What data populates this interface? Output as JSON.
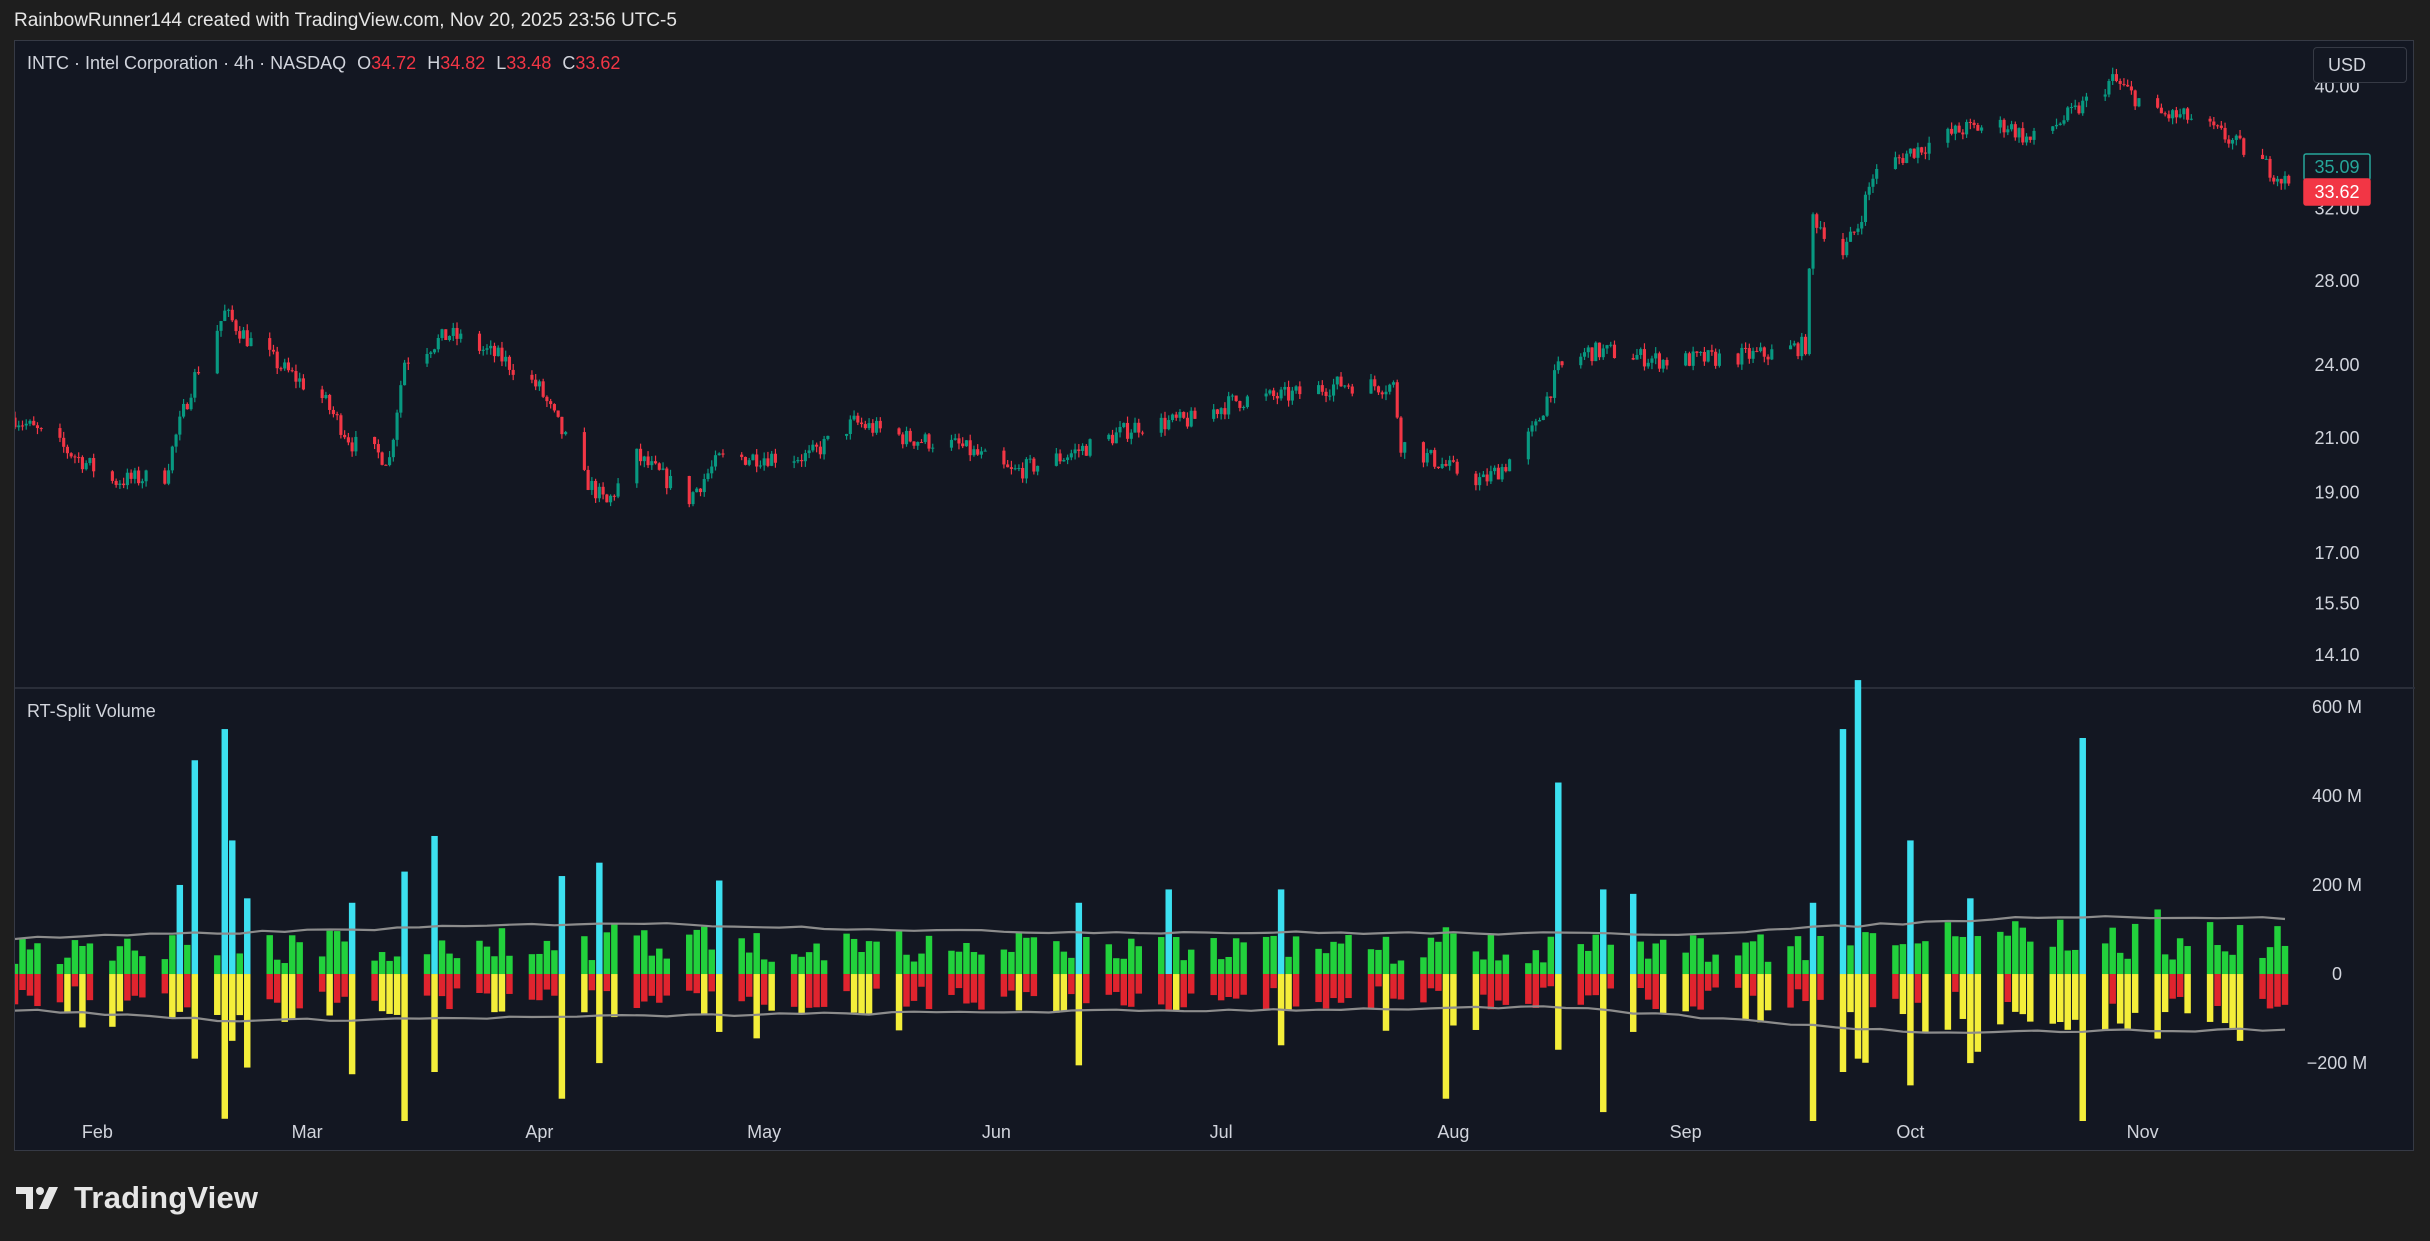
{
  "caption": "RainbowRunner144 created with TradingView.com, Nov 20, 2025 23:56 UTC-5",
  "legend": {
    "symbol": "INTC · Intel Corporation · 4h · NASDAQ",
    "o_label": "O",
    "o": "34.72",
    "h_label": "H",
    "h": "34.82",
    "l_label": "L",
    "l": "33.48",
    "c_label": "C",
    "c": "33.62"
  },
  "currency_button": "USD",
  "volume_pane_title": "RT-Split Volume",
  "brand": "TradingView",
  "colors": {
    "up": "#089981",
    "down": "#f23645",
    "vol_buy": "#22d13c",
    "vol_sell": "#e0242e",
    "vol_buy_spike": "#3ce0f0",
    "vol_sell_spike": "#f4ee3a",
    "avg_line": "#8c8c8c",
    "last_price_tag": "#f23645",
    "prev_close_tag": "#26a69a"
  },
  "chart_data": [
    {
      "type": "candlestick",
      "scale": "log",
      "y_ticks": [
        "40.00",
        "32.00",
        "28.00",
        "24.00",
        "21.00",
        "19.00",
        "17.00",
        "15.50",
        "14.10"
      ],
      "y_tick_values": [
        40,
        32,
        28,
        24,
        21,
        19,
        17,
        15.5,
        14.1
      ],
      "ylim": [
        13.3,
        43.5
      ],
      "x_ticks": [
        "Feb",
        "Mar",
        "Apr",
        "May",
        "Jun",
        "Jul",
        "Aug",
        "Sep",
        "Oct",
        "Nov"
      ],
      "last_price": "33.62",
      "prev_close": "35.09",
      "price_path": [
        [
          "2025-01-21",
          21.8
        ],
        [
          "2025-01-27",
          20.7
        ],
        [
          "2025-02-03",
          19.4
        ],
        [
          "2025-02-10",
          19.6
        ],
        [
          "2025-02-14",
          23.5
        ],
        [
          "2025-02-18",
          26.4
        ],
        [
          "2025-02-21",
          25.2
        ],
        [
          "2025-02-26",
          23.8
        ],
        [
          "2025-03-03",
          22.6
        ],
        [
          "2025-03-07",
          20.8
        ],
        [
          "2025-03-12",
          20.2
        ],
        [
          "2025-03-14",
          24.2
        ],
        [
          "2025-03-20",
          25.4
        ],
        [
          "2025-03-27",
          24.3
        ],
        [
          "2025-04-01",
          23.0
        ],
        [
          "2025-04-03",
          21.8
        ],
        [
          "2025-04-07",
          19.5
        ],
        [
          "2025-04-10",
          18.6
        ],
        [
          "2025-04-14",
          20.3
        ],
        [
          "2025-04-21",
          18.8
        ],
        [
          "2025-04-25",
          20.2
        ],
        [
          "2025-05-01",
          20.3
        ],
        [
          "2025-05-07",
          20.3
        ],
        [
          "2025-05-13",
          21.6
        ],
        [
          "2025-05-20",
          21.0
        ],
        [
          "2025-05-27",
          20.7
        ],
        [
          "2025-06-03",
          19.7
        ],
        [
          "2025-06-10",
          20.3
        ],
        [
          "2025-06-16",
          21.0
        ],
        [
          "2025-06-20",
          21.5
        ],
        [
          "2025-06-27",
          21.7
        ],
        [
          "2025-07-03",
          22.5
        ],
        [
          "2025-07-10",
          22.7
        ],
        [
          "2025-07-17",
          23.2
        ],
        [
          "2025-07-24",
          23.1
        ],
        [
          "2025-07-25",
          20.8
        ],
        [
          "2025-08-01",
          19.8
        ],
        [
          "2025-08-05",
          19.4
        ],
        [
          "2025-08-08",
          20.0
        ],
        [
          "2025-08-12",
          21.4
        ],
        [
          "2025-08-15",
          23.8
        ],
        [
          "2025-08-19",
          24.6
        ],
        [
          "2025-08-22",
          24.6
        ],
        [
          "2025-08-29",
          24.2
        ],
        [
          "2025-09-05",
          24.3
        ],
        [
          "2025-09-12",
          24.5
        ],
        [
          "2025-09-17",
          24.9
        ],
        [
          "2025-09-18",
          31.5
        ],
        [
          "2025-09-22",
          29.5
        ],
        [
          "2025-09-24",
          31.0
        ],
        [
          "2025-09-26",
          34.0
        ],
        [
          "2025-10-01",
          35.5
        ],
        [
          "2025-10-08",
          37.0
        ],
        [
          "2025-10-14",
          37.3
        ],
        [
          "2025-10-17",
          36.2
        ],
        [
          "2025-10-23",
          38.2
        ],
        [
          "2025-10-28",
          40.5
        ],
        [
          "2025-11-03",
          38.0
        ],
        [
          "2025-11-07",
          37.8
        ],
        [
          "2025-11-12",
          36.5
        ],
        [
          "2025-11-17",
          34.8
        ],
        [
          "2025-11-20",
          33.62
        ]
      ]
    },
    {
      "type": "bar",
      "title": "RT-Split Volume",
      "y_ticks": [
        "600 M",
        "400 M",
        "200 M",
        "0",
        "−200 M"
      ],
      "y_tick_values": [
        600,
        400,
        200,
        0,
        -200
      ],
      "ylim": [
        -330,
        640
      ],
      "units": "millions of shares",
      "buy_spike_threshold": 150,
      "sell_spike_threshold": 80,
      "avg_buy_level": [
        [
          "2025-01-21",
          80
        ],
        [
          "2025-04-10",
          115
        ],
        [
          "2025-06-01",
          95
        ],
        [
          "2025-09-01",
          90
        ],
        [
          "2025-10-20",
          130
        ],
        [
          "2025-11-20",
          125
        ]
      ],
      "avg_sell_level": [
        [
          "2025-01-21",
          -80
        ],
        [
          "2025-02-20",
          -105
        ],
        [
          "2025-04-10",
          -95
        ],
        [
          "2025-06-01",
          -85
        ],
        [
          "2025-08-15",
          -75
        ],
        [
          "2025-10-01",
          -130
        ],
        [
          "2025-11-20",
          -125
        ]
      ],
      "spikes": [
        [
          "2025-02-12",
          200,
          -85
        ],
        [
          "2025-02-14",
          480,
          -190
        ],
        [
          "2025-02-18",
          550,
          -325
        ],
        [
          "2025-02-19",
          300,
          -150
        ],
        [
          "2025-02-21",
          170,
          -210
        ],
        [
          "2025-03-07",
          160,
          -225
        ],
        [
          "2025-03-14",
          230,
          -330
        ],
        [
          "2025-03-18",
          310,
          -220
        ],
        [
          "2025-04-04",
          220,
          -280
        ],
        [
          "2025-04-09",
          250,
          -200
        ],
        [
          "2025-04-25",
          210,
          -130
        ],
        [
          "2025-06-12",
          160,
          -205
        ],
        [
          "2025-06-24",
          190,
          -80
        ],
        [
          "2025-07-09",
          190,
          -160
        ],
        [
          "2025-07-31",
          105,
          -280
        ],
        [
          "2025-08-15",
          430,
          -170
        ],
        [
          "2025-08-21",
          190,
          -310
        ],
        [
          "2025-08-25",
          180,
          -130
        ],
        [
          "2025-09-18",
          160,
          -330
        ],
        [
          "2025-09-22",
          550,
          -220
        ],
        [
          "2025-09-24",
          660,
          -190
        ],
        [
          "2025-10-01",
          300,
          -250
        ],
        [
          "2025-10-09",
          170,
          -200
        ],
        [
          "2025-10-24",
          530,
          -330
        ],
        [
          "2025-11-03",
          145,
          -145
        ],
        [
          "2025-11-14",
          110,
          -150
        ]
      ]
    }
  ]
}
